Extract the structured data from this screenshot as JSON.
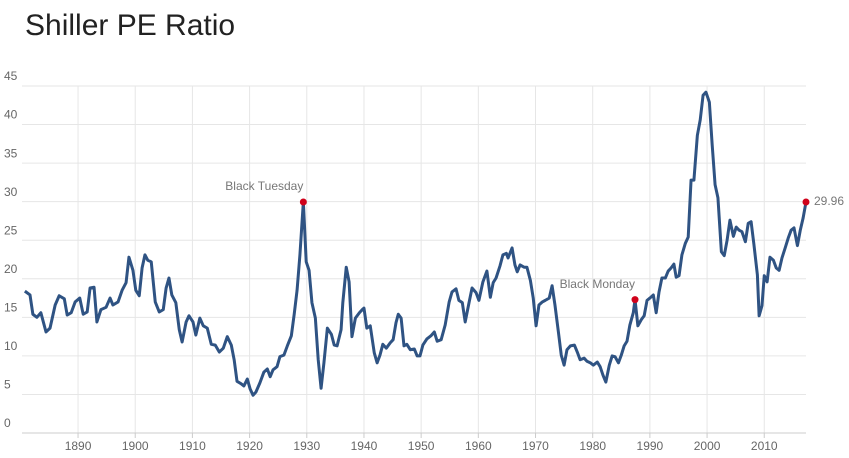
{
  "chart_data": {
    "type": "line",
    "title": "Shiller PE Ratio",
    "xlim": [
      1880.2,
      2017.3
    ],
    "ylim": [
      0,
      45
    ],
    "xticks": [
      1890,
      1900,
      1910,
      1920,
      1930,
      1940,
      1950,
      1960,
      1970,
      1980,
      1990,
      2000,
      2010
    ],
    "yticks": [
      0,
      5,
      10,
      15,
      20,
      25,
      30,
      35,
      40,
      45
    ],
    "grid": true,
    "color": "#2f5383",
    "x": [
      1880.7,
      1881.6,
      1882.1,
      1882.8,
      1883.5,
      1884.4,
      1885.1,
      1886.0,
      1886.7,
      1887.6,
      1888.1,
      1888.8,
      1889.5,
      1890.3,
      1890.9,
      1891.6,
      1892.1,
      1892.8,
      1893.3,
      1894.0,
      1894.9,
      1895.6,
      1896.1,
      1897.0,
      1897.7,
      1898.4,
      1898.9,
      1899.6,
      1900.1,
      1900.7,
      1901.2,
      1901.7,
      1902.2,
      1902.8,
      1903.5,
      1904.2,
      1904.9,
      1905.4,
      1905.9,
      1906.4,
      1907.1,
      1907.7,
      1908.2,
      1908.9,
      1909.4,
      1910.1,
      1910.6,
      1911.3,
      1911.9,
      1912.6,
      1913.3,
      1914.0,
      1914.7,
      1915.4,
      1916.1,
      1916.8,
      1917.3,
      1917.8,
      1918.5,
      1919.0,
      1919.6,
      1920.1,
      1920.6,
      1921.1,
      1921.8,
      1922.5,
      1923.1,
      1923.6,
      1924.1,
      1924.8,
      1925.3,
      1926.0,
      1926.6,
      1927.3,
      1927.8,
      1928.3,
      1928.8,
      1929.4,
      1929.9,
      1930.4,
      1930.9,
      1931.5,
      1932.0,
      1932.5,
      1933.0,
      1933.6,
      1934.3,
      1934.8,
      1935.3,
      1936.0,
      1936.3,
      1936.9,
      1937.4,
      1937.9,
      1938.5,
      1939.2,
      1939.7,
      1940.0,
      1940.5,
      1941.1,
      1941.8,
      1942.3,
      1942.8,
      1943.3,
      1943.9,
      1944.6,
      1945.1,
      1945.6,
      1946.0,
      1946.5,
      1947.0,
      1947.5,
      1948.1,
      1948.8,
      1949.3,
      1949.8,
      1950.3,
      1951.0,
      1951.7,
      1952.3,
      1952.8,
      1953.5,
      1954.2,
      1954.9,
      1955.4,
      1956.1,
      1956.6,
      1957.2,
      1957.7,
      1958.4,
      1958.9,
      1959.6,
      1960.1,
      1960.8,
      1961.5,
      1962.1,
      1962.6,
      1963.1,
      1963.8,
      1964.3,
      1964.9,
      1965.2,
      1965.9,
      1966.4,
      1966.8,
      1967.3,
      1968.0,
      1968.5,
      1969.1,
      1969.6,
      1970.1,
      1970.6,
      1971.2,
      1971.7,
      1972.4,
      1972.9,
      1973.4,
      1974.0,
      1974.5,
      1975.0,
      1975.5,
      1976.1,
      1976.8,
      1977.3,
      1977.8,
      1978.5,
      1979.0,
      1979.6,
      1980.1,
      1980.8,
      1981.3,
      1981.8,
      1982.3,
      1982.9,
      1983.4,
      1983.9,
      1984.5,
      1985.0,
      1985.5,
      1986.0,
      1986.5,
      1987.1,
      1987.4,
      1987.9,
      1988.5,
      1989.0,
      1989.5,
      1990.0,
      1990.6,
      1991.1,
      1991.6,
      1992.1,
      1992.7,
      1993.2,
      1993.7,
      1994.2,
      1994.6,
      1995.1,
      1995.6,
      1996.2,
      1996.7,
      1997.2,
      1997.7,
      1998.3,
      1998.8,
      1999.3,
      1999.8,
      2000.4,
      2000.9,
      2001.4,
      2001.9,
      2002.5,
      2003.0,
      2003.5,
      2004.0,
      2004.6,
      2005.1,
      2005.6,
      2006.1,
      2006.7,
      2007.2,
      2007.7,
      2008.2,
      2008.8,
      2009.1,
      2009.6,
      2010.0,
      2010.5,
      2011.0,
      2011.6,
      2012.1,
      2012.6,
      2013.1,
      2013.7,
      2014.2,
      2014.7,
      2015.2,
      2015.8,
      2016.3,
      2016.8,
      2017.3
    ],
    "values": [
      18.4,
      17.9,
      15.4,
      15.0,
      15.6,
      13.1,
      13.6,
      16.6,
      17.8,
      17.4,
      15.3,
      15.6,
      17.0,
      17.5,
      15.4,
      15.7,
      18.8,
      18.9,
      14.4,
      16.0,
      16.3,
      17.5,
      16.6,
      17.0,
      18.5,
      19.5,
      22.8,
      21.1,
      18.5,
      17.8,
      21.4,
      23.1,
      22.4,
      22.2,
      17.0,
      15.7,
      16.0,
      18.8,
      20.1,
      17.9,
      16.9,
      13.4,
      11.8,
      14.4,
      15.2,
      14.4,
      12.7,
      14.9,
      13.9,
      13.6,
      11.5,
      11.4,
      10.5,
      11.0,
      12.5,
      11.4,
      9.5,
      6.7,
      6.4,
      6.1,
      7.0,
      5.7,
      4.9,
      5.3,
      6.5,
      7.9,
      8.3,
      7.3,
      8.2,
      8.6,
      9.9,
      10.1,
      11.3,
      12.6,
      15.4,
      18.5,
      23.1,
      29.96,
      22.2,
      21.1,
      16.9,
      14.9,
      9.5,
      5.8,
      9.1,
      13.6,
      12.8,
      11.4,
      11.3,
      13.4,
      16.9,
      21.5,
      19.6,
      12.5,
      14.9,
      15.6,
      16.0,
      16.2,
      13.6,
      13.9,
      10.4,
      9.1,
      10.1,
      11.5,
      11.0,
      11.7,
      12.1,
      14.3,
      15.4,
      14.9,
      11.3,
      11.5,
      10.8,
      10.9,
      10.0,
      10.0,
      11.4,
      12.2,
      12.6,
      13.1,
      11.9,
      12.1,
      14.0,
      17.0,
      18.3,
      18.7,
      17.2,
      16.9,
      14.4,
      17.0,
      18.8,
      18.2,
      17.2,
      19.6,
      21.0,
      17.6,
      19.5,
      20.1,
      21.7,
      23.1,
      23.3,
      22.7,
      24.0,
      21.8,
      20.9,
      21.8,
      21.5,
      21.5,
      19.8,
      17.5,
      13.9,
      16.6,
      17.0,
      17.2,
      17.5,
      19.1,
      16.6,
      13.1,
      10.1,
      8.8,
      10.8,
      11.3,
      11.4,
      10.5,
      9.5,
      9.7,
      9.3,
      9.1,
      8.8,
      9.2,
      8.6,
      7.5,
      6.6,
      8.8,
      10.0,
      9.9,
      9.1,
      10.1,
      11.3,
      11.9,
      14.0,
      15.6,
      17.3,
      13.9,
      14.7,
      15.2,
      17.2,
      17.5,
      17.9,
      15.6,
      18.3,
      20.1,
      20.1,
      21.0,
      21.4,
      21.9,
      20.2,
      20.4,
      23.1,
      24.6,
      25.4,
      32.8,
      32.8,
      38.6,
      40.6,
      43.8,
      44.2,
      42.9,
      37.3,
      32.2,
      30.5,
      23.5,
      23.0,
      25.0,
      27.6,
      25.5,
      26.7,
      26.3,
      26.1,
      24.8,
      27.2,
      27.4,
      24.4,
      20.5,
      15.2,
      16.5,
      20.4,
      19.6,
      22.8,
      22.4,
      21.4,
      21.1,
      22.7,
      24.1,
      25.3,
      26.3,
      26.6,
      24.3,
      26.3,
      27.9,
      29.96
    ],
    "annotations": [
      {
        "text": "Black Tuesday",
        "x": 1929.4,
        "y": 29.96,
        "color": "#d0021b",
        "position": "above"
      },
      {
        "text": "Black Monday",
        "x": 1987.4,
        "y": 17.3,
        "color": "#d0021b",
        "position": "above"
      },
      {
        "x": 2017.3,
        "y": 29.96,
        "color": "#d0021b",
        "position": "right"
      }
    ]
  }
}
